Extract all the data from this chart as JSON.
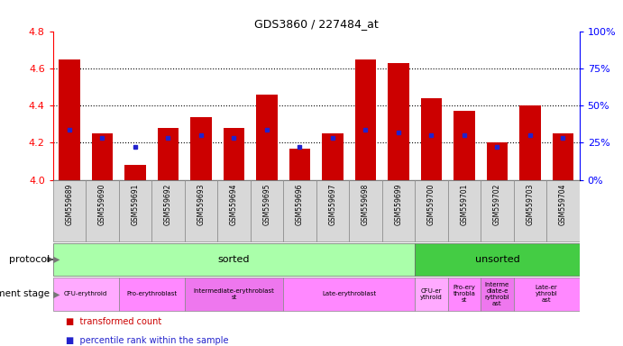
{
  "title": "GDS3860 / 227484_at",
  "samples": [
    "GSM559689",
    "GSM559690",
    "GSM559691",
    "GSM559692",
    "GSM559693",
    "GSM559694",
    "GSM559695",
    "GSM559696",
    "GSM559697",
    "GSM559698",
    "GSM559699",
    "GSM559700",
    "GSM559701",
    "GSM559702",
    "GSM559703",
    "GSM559704"
  ],
  "transformed_count": [
    4.65,
    4.25,
    4.08,
    4.28,
    4.34,
    4.28,
    4.46,
    4.17,
    4.25,
    4.65,
    4.63,
    4.44,
    4.37,
    4.2,
    4.4,
    4.25
  ],
  "percentile_rank": [
    34,
    28,
    22,
    28,
    30,
    28,
    34,
    22,
    28,
    34,
    32,
    30,
    30,
    22,
    30,
    28
  ],
  "ylim_left": [
    4.0,
    4.8
  ],
  "ylim_right": [
    0,
    100
  ],
  "bar_color": "#cc0000",
  "dot_color": "#2222cc",
  "bg_color": "#ffffff",
  "left_yticks": [
    4.0,
    4.2,
    4.4,
    4.6,
    4.8
  ],
  "right_yticks": [
    0,
    25,
    50,
    75,
    100
  ],
  "right_yticklabels": [
    "0%",
    "25%",
    "50%",
    "75%",
    "100%"
  ],
  "protocol_sorted_color": "#aaffaa",
  "protocol_unsorted_color": "#44cc44",
  "protocol_sorted_range": [
    0,
    10
  ],
  "protocol_unsorted_range": [
    11,
    15
  ],
  "dev_stage_sorted": [
    {
      "label": "CFU-erythroid",
      "start": 0,
      "end": 1,
      "color": "#ffaaff"
    },
    {
      "label": "Pro-erythroblast",
      "start": 2,
      "end": 3,
      "color": "#ff88ff"
    },
    {
      "label": "Intermediate-erythroblast\nst",
      "start": 4,
      "end": 6,
      "color": "#ee77ee"
    },
    {
      "label": "Late-erythroblast",
      "start": 7,
      "end": 10,
      "color": "#ff88ff"
    }
  ],
  "dev_stage_unsorted": [
    {
      "label": "CFU-er\nythroid",
      "start": 11,
      "end": 11,
      "color": "#ffaaff"
    },
    {
      "label": "Pro-ery\nthrobla\nst",
      "start": 12,
      "end": 12,
      "color": "#ff88ff"
    },
    {
      "label": "Interme\ndiate-e\nrythrobl\nast",
      "start": 13,
      "end": 13,
      "color": "#ee77ee"
    },
    {
      "label": "Late-er\nythrobl\nast",
      "start": 14,
      "end": 15,
      "color": "#ff88ff"
    }
  ],
  "xtick_box_color": "#d8d8d8",
  "legend_items": [
    {
      "label": "transformed count",
      "color": "#cc0000"
    },
    {
      "label": "percentile rank within the sample",
      "color": "#2222cc"
    }
  ]
}
